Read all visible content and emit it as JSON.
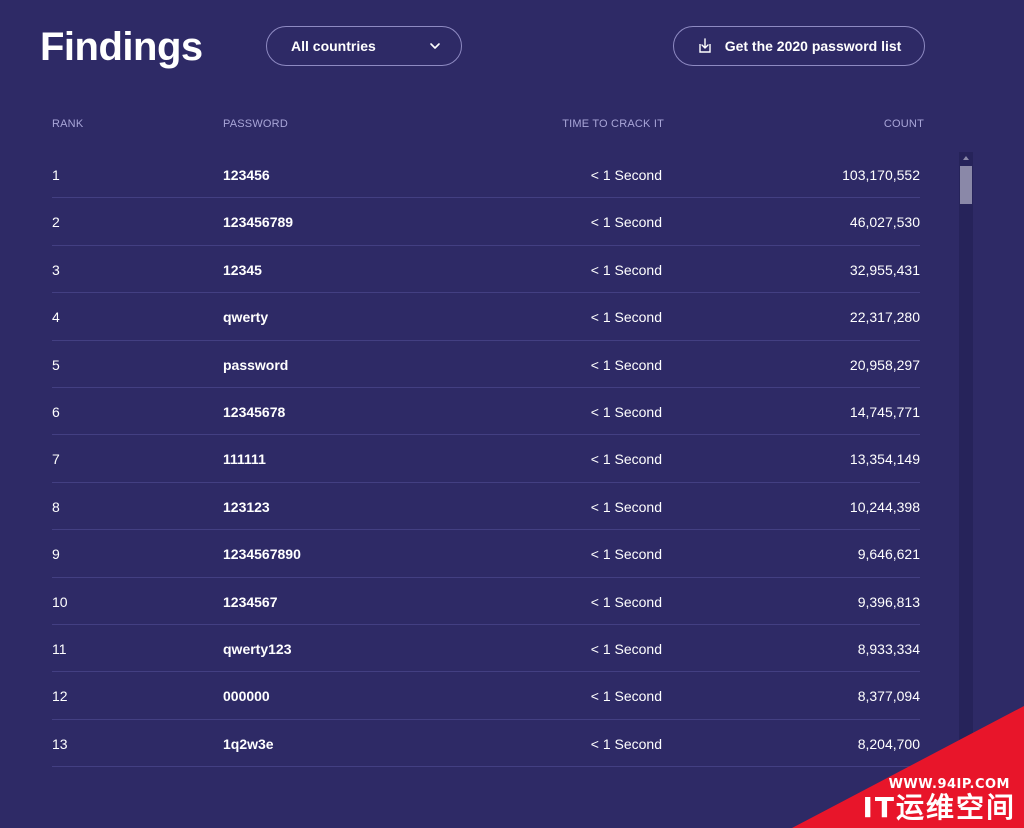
{
  "header": {
    "title": "Findings",
    "country_select": {
      "value": "All countries",
      "icon": "chevron-down-icon"
    },
    "download_button": {
      "label": "Get the 2020 password list",
      "icon": "download-icon"
    }
  },
  "table": {
    "columns": [
      "RANK",
      "PASSWORD",
      "TIME TO CRACK IT",
      "COUNT"
    ],
    "rows": [
      {
        "rank": "1",
        "password": "123456",
        "time": "< 1 Second",
        "count": "103,170,552"
      },
      {
        "rank": "2",
        "password": "123456789",
        "time": "< 1 Second",
        "count": "46,027,530"
      },
      {
        "rank": "3",
        "password": "12345",
        "time": "< 1 Second",
        "count": "32,955,431"
      },
      {
        "rank": "4",
        "password": "qwerty",
        "time": "< 1 Second",
        "count": "22,317,280"
      },
      {
        "rank": "5",
        "password": "password",
        "time": "< 1 Second",
        "count": "20,958,297"
      },
      {
        "rank": "6",
        "password": "12345678",
        "time": "< 1 Second",
        "count": "14,745,771"
      },
      {
        "rank": "7",
        "password": "111111",
        "time": "< 1 Second",
        "count": "13,354,149"
      },
      {
        "rank": "8",
        "password": "123123",
        "time": "< 1 Second",
        "count": "10,244,398"
      },
      {
        "rank": "9",
        "password": "1234567890",
        "time": "< 1 Second",
        "count": "9,646,621"
      },
      {
        "rank": "10",
        "password": "1234567",
        "time": "< 1 Second",
        "count": "9,396,813"
      },
      {
        "rank": "11",
        "password": "qwerty123",
        "time": "< 1 Second",
        "count": "8,933,334"
      },
      {
        "rank": "12",
        "password": "000000",
        "time": "< 1 Second",
        "count": "8,377,094"
      },
      {
        "rank": "13",
        "password": "1q2w3e",
        "time": "< 1 Second",
        "count": "8,204,700"
      }
    ]
  },
  "watermark": {
    "url": "WWW.94IP.COM",
    "name": "IT运维空间"
  },
  "colors": {
    "background": "#2e2a66",
    "text": "#ffffff",
    "header_link": "#a9a6d8",
    "row_divider": "#433f82",
    "watermark_red": "#e8152a"
  }
}
